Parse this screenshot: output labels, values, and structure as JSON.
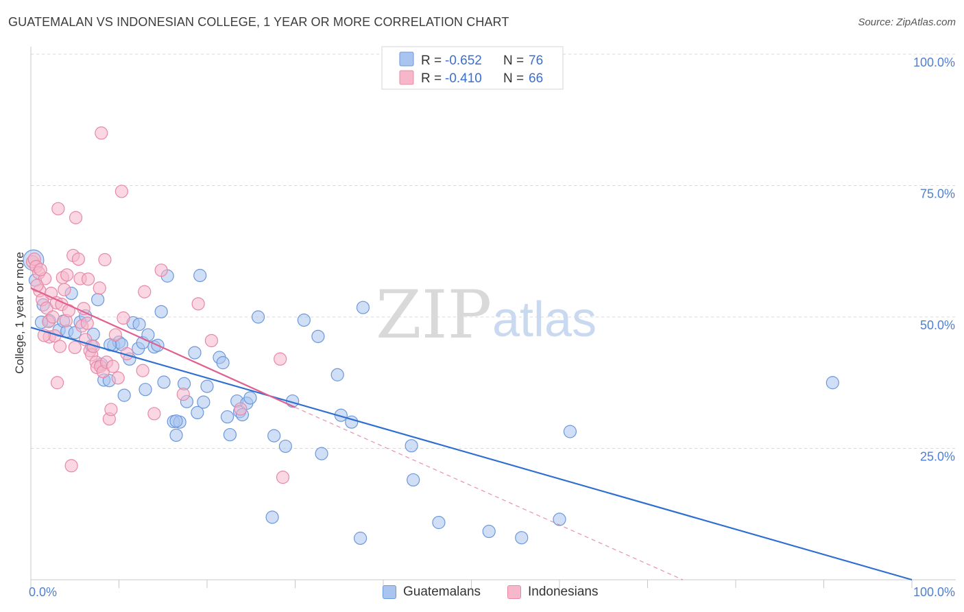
{
  "title": "GUATEMALAN VS INDONESIAN COLLEGE, 1 YEAR OR MORE CORRELATION CHART",
  "source": "Source: ZipAtlas.com",
  "watermark": {
    "zip": "ZIP",
    "atlas": "atlas"
  },
  "colors": {
    "guatemalans_fill": "#a9c4ee",
    "guatemalans_stroke": "#6b97dc",
    "guatemalans_line": "#2f6fd0",
    "indonesians_fill": "#f6b7ca",
    "indonesians_stroke": "#e888a6",
    "indonesians_line": "#e0608f",
    "grid": "#d8d8d8",
    "axis_label": "#4f7fd0"
  },
  "legend": {
    "rows": [
      {
        "r_label": "R = ",
        "r_value": "-0.652",
        "n_label": "N = ",
        "n_value": "76"
      },
      {
        "r_label": "R = ",
        "r_value": "-0.410",
        "n_label": "N = ",
        "n_value": "66"
      }
    ]
  },
  "chart_data": {
    "type": "scatter",
    "title": "GUATEMALAN VS INDONESIAN COLLEGE, 1 YEAR OR MORE CORRELATION CHART",
    "xlabel": "",
    "ylabel": "College, 1 year or more",
    "xlim": [
      0,
      100
    ],
    "ylim": [
      0,
      100
    ],
    "x_tick_labels": [
      "0.0%",
      "100.0%"
    ],
    "y_ticks": [
      25,
      50,
      75,
      100
    ],
    "y_tick_labels": [
      "25.0%",
      "50.0%",
      "75.0%",
      "100.0%"
    ],
    "series": [
      {
        "name": "Guatemalans",
        "r": -0.652,
        "n": 76,
        "trend": {
          "x": [
            0,
            100
          ],
          "y": [
            48.0,
            0.0
          ],
          "dashed_extension": false
        },
        "points": [
          [
            0.3,
            60.8
          ],
          [
            0.5,
            57.0
          ],
          [
            1.4,
            52.3
          ],
          [
            2.1,
            49.3
          ],
          [
            3.2,
            47.5
          ],
          [
            3.7,
            49.2
          ],
          [
            4.1,
            47.3
          ],
          [
            4.6,
            54.5
          ],
          [
            5.0,
            47.0
          ],
          [
            5.6,
            49.0
          ],
          [
            6.2,
            50.2
          ],
          [
            6.9,
            44.5
          ],
          [
            7.1,
            46.7
          ],
          [
            7.6,
            53.3
          ],
          [
            8.0,
            41.0
          ],
          [
            8.3,
            38.0
          ],
          [
            8.9,
            37.9
          ],
          [
            9.4,
            44.6
          ],
          [
            10.0,
            45.2
          ],
          [
            10.3,
            44.8
          ],
          [
            10.6,
            35.1
          ],
          [
            11.2,
            42.0
          ],
          [
            11.6,
            48.9
          ],
          [
            12.2,
            44.0
          ],
          [
            12.7,
            45.1
          ],
          [
            13.0,
            36.2
          ],
          [
            13.3,
            46.6
          ],
          [
            14.0,
            44.3
          ],
          [
            14.4,
            44.6
          ],
          [
            14.8,
            51.0
          ],
          [
            15.1,
            37.6
          ],
          [
            15.5,
            57.8
          ],
          [
            16.2,
            30.1
          ],
          [
            16.5,
            27.5
          ],
          [
            16.9,
            30.0
          ],
          [
            17.4,
            37.3
          ],
          [
            17.7,
            33.9
          ],
          [
            18.6,
            43.2
          ],
          [
            18.9,
            31.8
          ],
          [
            19.2,
            57.9
          ],
          [
            19.6,
            33.8
          ],
          [
            20.0,
            36.8
          ],
          [
            21.4,
            42.3
          ],
          [
            21.8,
            41.3
          ],
          [
            22.3,
            31.0
          ],
          [
            22.6,
            27.6
          ],
          [
            23.4,
            34.0
          ],
          [
            23.7,
            32.0
          ],
          [
            24.0,
            31.4
          ],
          [
            24.5,
            33.6
          ],
          [
            24.9,
            34.6
          ],
          [
            25.8,
            50.0
          ],
          [
            27.4,
            11.9
          ],
          [
            27.6,
            27.4
          ],
          [
            28.9,
            25.4
          ],
          [
            29.7,
            34.0
          ],
          [
            31.0,
            49.4
          ],
          [
            32.6,
            46.3
          ],
          [
            33.0,
            24.0
          ],
          [
            34.8,
            39.0
          ],
          [
            35.2,
            31.3
          ],
          [
            36.4,
            30.0
          ],
          [
            37.4,
            7.9
          ],
          [
            37.7,
            51.8
          ],
          [
            43.2,
            25.5
          ],
          [
            43.4,
            19.0
          ],
          [
            46.3,
            10.9
          ],
          [
            52.0,
            9.2
          ],
          [
            55.7,
            8.0
          ],
          [
            60.0,
            11.5
          ],
          [
            61.2,
            28.2
          ],
          [
            91.0,
            37.5
          ],
          [
            16.5,
            30.2
          ],
          [
            12.3,
            48.6
          ],
          [
            9.0,
            44.7
          ],
          [
            1.2,
            49.0
          ]
        ]
      },
      {
        "name": "Indonesians",
        "r": -0.41,
        "n": 66,
        "trend": {
          "x": [
            0,
            30
          ],
          "y": [
            55.5,
            32.8
          ],
          "dashed_extension": true,
          "dash_to": [
            74.0,
            0.0
          ]
        },
        "points": [
          [
            0.2,
            60.5
          ],
          [
            0.4,
            61.0
          ],
          [
            0.6,
            59.6
          ],
          [
            0.9,
            58.4
          ],
          [
            1.0,
            55.0
          ],
          [
            1.3,
            53.3
          ],
          [
            1.6,
            57.3
          ],
          [
            1.8,
            51.7
          ],
          [
            2.0,
            49.1
          ],
          [
            2.1,
            46.2
          ],
          [
            2.3,
            54.5
          ],
          [
            2.5,
            50.0
          ],
          [
            2.7,
            46.4
          ],
          [
            2.9,
            52.7
          ],
          [
            3.1,
            70.6
          ],
          [
            3.0,
            37.5
          ],
          [
            3.3,
            44.4
          ],
          [
            3.5,
            52.4
          ],
          [
            3.6,
            57.5
          ],
          [
            3.8,
            55.2
          ],
          [
            4.0,
            49.3
          ],
          [
            4.1,
            58.0
          ],
          [
            4.3,
            51.2
          ],
          [
            4.6,
            21.7
          ],
          [
            4.8,
            61.7
          ],
          [
            5.0,
            44.2
          ],
          [
            5.1,
            68.9
          ],
          [
            5.4,
            61.0
          ],
          [
            5.6,
            57.3
          ],
          [
            5.8,
            48.3
          ],
          [
            6.0,
            51.6
          ],
          [
            6.2,
            45.7
          ],
          [
            6.4,
            48.8
          ],
          [
            6.5,
            57.2
          ],
          [
            6.7,
            43.6
          ],
          [
            6.9,
            42.8
          ],
          [
            7.1,
            44.4
          ],
          [
            7.4,
            41.4
          ],
          [
            7.5,
            40.4
          ],
          [
            7.8,
            55.5
          ],
          [
            7.9,
            40.6
          ],
          [
            8.0,
            85.0
          ],
          [
            8.2,
            39.6
          ],
          [
            8.4,
            60.9
          ],
          [
            8.6,
            41.4
          ],
          [
            8.9,
            30.6
          ],
          [
            9.1,
            32.4
          ],
          [
            9.3,
            40.6
          ],
          [
            9.6,
            46.6
          ],
          [
            9.9,
            38.4
          ],
          [
            10.3,
            73.9
          ],
          [
            10.5,
            49.8
          ],
          [
            10.9,
            43.0
          ],
          [
            12.7,
            39.8
          ],
          [
            12.9,
            54.8
          ],
          [
            14.0,
            31.6
          ],
          [
            14.8,
            58.9
          ],
          [
            17.3,
            35.3
          ],
          [
            19.0,
            52.5
          ],
          [
            20.5,
            45.5
          ],
          [
            23.8,
            32.5
          ],
          [
            28.3,
            42.0
          ],
          [
            28.6,
            19.5
          ],
          [
            1.5,
            46.5
          ],
          [
            0.7,
            56.0
          ],
          [
            1.1,
            59.0
          ]
        ]
      }
    ]
  },
  "bottom_legend": [
    {
      "label": "Guatemalans"
    },
    {
      "label": "Indonesians"
    }
  ]
}
